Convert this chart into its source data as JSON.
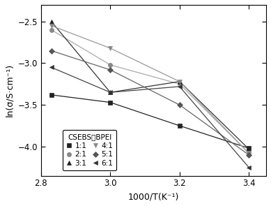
{
  "title": "",
  "xlabel": "1000/T(K⁻¹)",
  "ylabel": "ln(σ/S·cm⁻¹)",
  "xlim": [
    2.8,
    3.45
  ],
  "ylim": [
    -4.35,
    -2.3
  ],
  "xticks": [
    2.8,
    3.0,
    3.2,
    3.4
  ],
  "yticks": [
    -4.0,
    -3.5,
    -3.0,
    -2.5
  ],
  "series": [
    {
      "label": "1:1",
      "marker": "s",
      "linecolor": "#222222",
      "markercolor": "#222222",
      "mfc": "#222222",
      "x": [
        2.83,
        3.0,
        3.2,
        3.4
      ],
      "y": [
        -3.38,
        -3.47,
        -3.75,
        -4.02
      ]
    },
    {
      "label": "2:1",
      "marker": "o",
      "linecolor": "#aaaaaa",
      "markercolor": "#888888",
      "mfc": "#888888",
      "x": [
        2.83,
        3.0,
        3.2,
        3.4
      ],
      "y": [
        -2.6,
        -3.02,
        -3.25,
        -4.08
      ]
    },
    {
      "label": "3:1",
      "marker": "^",
      "linecolor": "#333333",
      "markercolor": "#222222",
      "mfc": "#222222",
      "x": [
        2.83,
        3.0,
        3.2,
        3.4
      ],
      "y": [
        -2.5,
        -3.35,
        -3.22,
        -4.03
      ]
    },
    {
      "label": "4:1",
      "marker": "v",
      "linecolor": "#999999",
      "markercolor": "#888888",
      "mfc": "#888888",
      "x": [
        2.83,
        3.0,
        3.2,
        3.4
      ],
      "y": [
        -2.55,
        -2.82,
        -3.22,
        -4.08
      ]
    },
    {
      "label": "5:1",
      "marker": "D",
      "linecolor": "#666666",
      "markercolor": "#555555",
      "mfc": "#555555",
      "x": [
        2.83,
        3.0,
        3.2,
        3.4
      ],
      "y": [
        -2.85,
        -3.08,
        -3.5,
        -4.1
      ]
    },
    {
      "label": "6:1",
      "marker": "<",
      "linecolor": "#444444",
      "markercolor": "#333333",
      "mfc": "#333333",
      "x": [
        2.83,
        3.0,
        3.2,
        3.4
      ],
      "y": [
        -3.05,
        -3.35,
        -3.28,
        -4.25
      ]
    }
  ],
  "legend_title": "CSEBS；BPEI",
  "legend_labels_col1": [
    "1:1",
    "3:1",
    "5:1"
  ],
  "legend_labels_col2": [
    "2:1",
    "4:1",
    "6:1"
  ],
  "background_color": "#ffffff"
}
